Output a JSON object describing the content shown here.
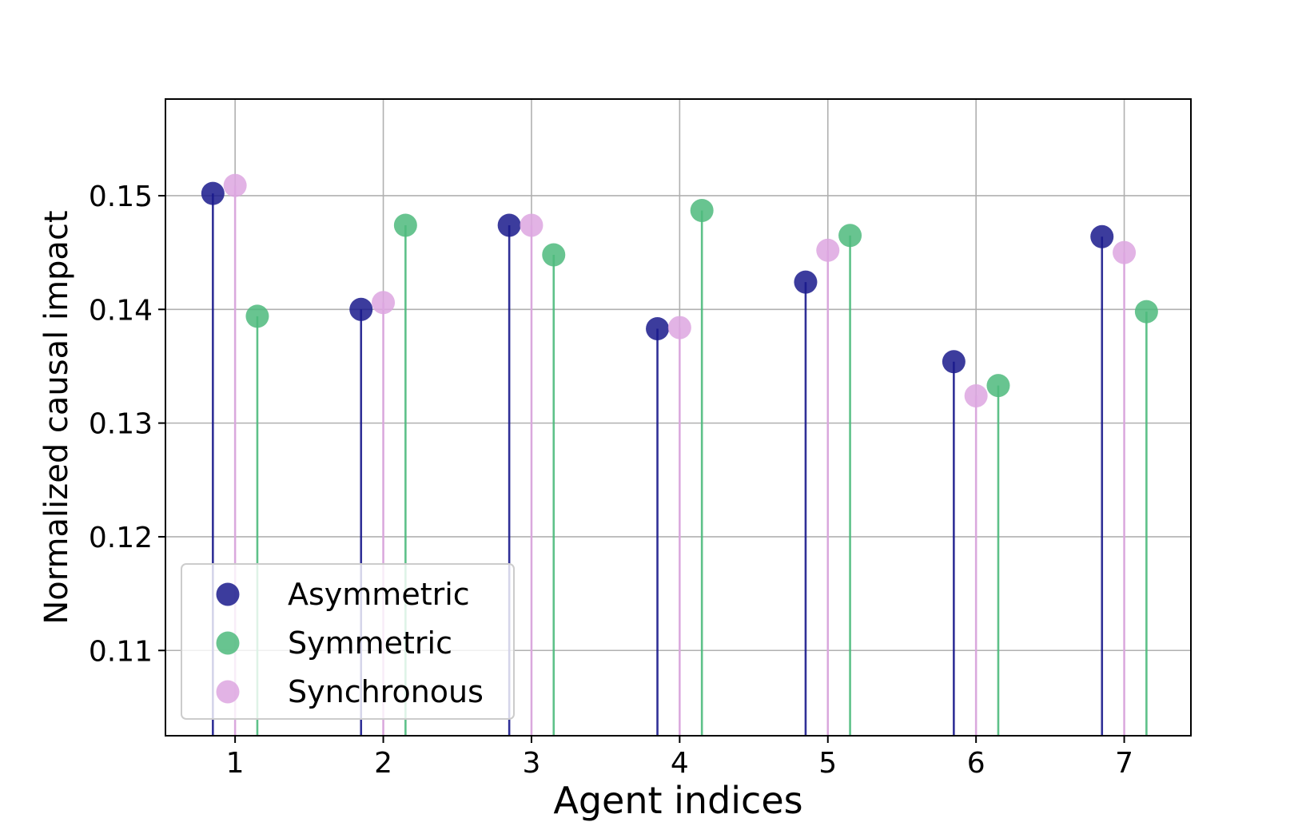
{
  "chart_data": {
    "type": "scatter",
    "style": "stem",
    "xlabel": "Agent indices",
    "ylabel": "Normalized causal impact",
    "x_ticks": [
      1,
      2,
      3,
      4,
      5,
      6,
      7
    ],
    "y_ticks": [
      0.11,
      0.12,
      0.13,
      0.14,
      0.15
    ],
    "xlim": [
      0.53,
      7.45
    ],
    "ylim": [
      0.1025,
      0.1585
    ],
    "grid": true,
    "legend_position": "lower-left",
    "series": [
      {
        "name": "Asymmetric",
        "color": "#1a1a8c",
        "x": [
          0.85,
          1.85,
          2.85,
          3.85,
          4.85,
          5.85,
          6.85
        ],
        "values": [
          0.1502,
          0.14,
          0.1474,
          0.1383,
          0.1424,
          0.1354,
          0.1464
        ]
      },
      {
        "name": "Symmetric",
        "color": "#4dba7c",
        "x": [
          1.15,
          2.15,
          3.15,
          4.15,
          5.15,
          6.15,
          7.15
        ],
        "values": [
          0.1394,
          0.1474,
          0.1448,
          0.1487,
          0.1465,
          0.1333,
          0.1398
        ]
      },
      {
        "name": "Synchronous",
        "color": "#dda6e0",
        "x": [
          1,
          2,
          3,
          4,
          5,
          6,
          7
        ],
        "values": [
          0.1509,
          0.1406,
          0.1474,
          0.1384,
          0.1452,
          0.1324,
          0.145
        ]
      }
    ]
  }
}
